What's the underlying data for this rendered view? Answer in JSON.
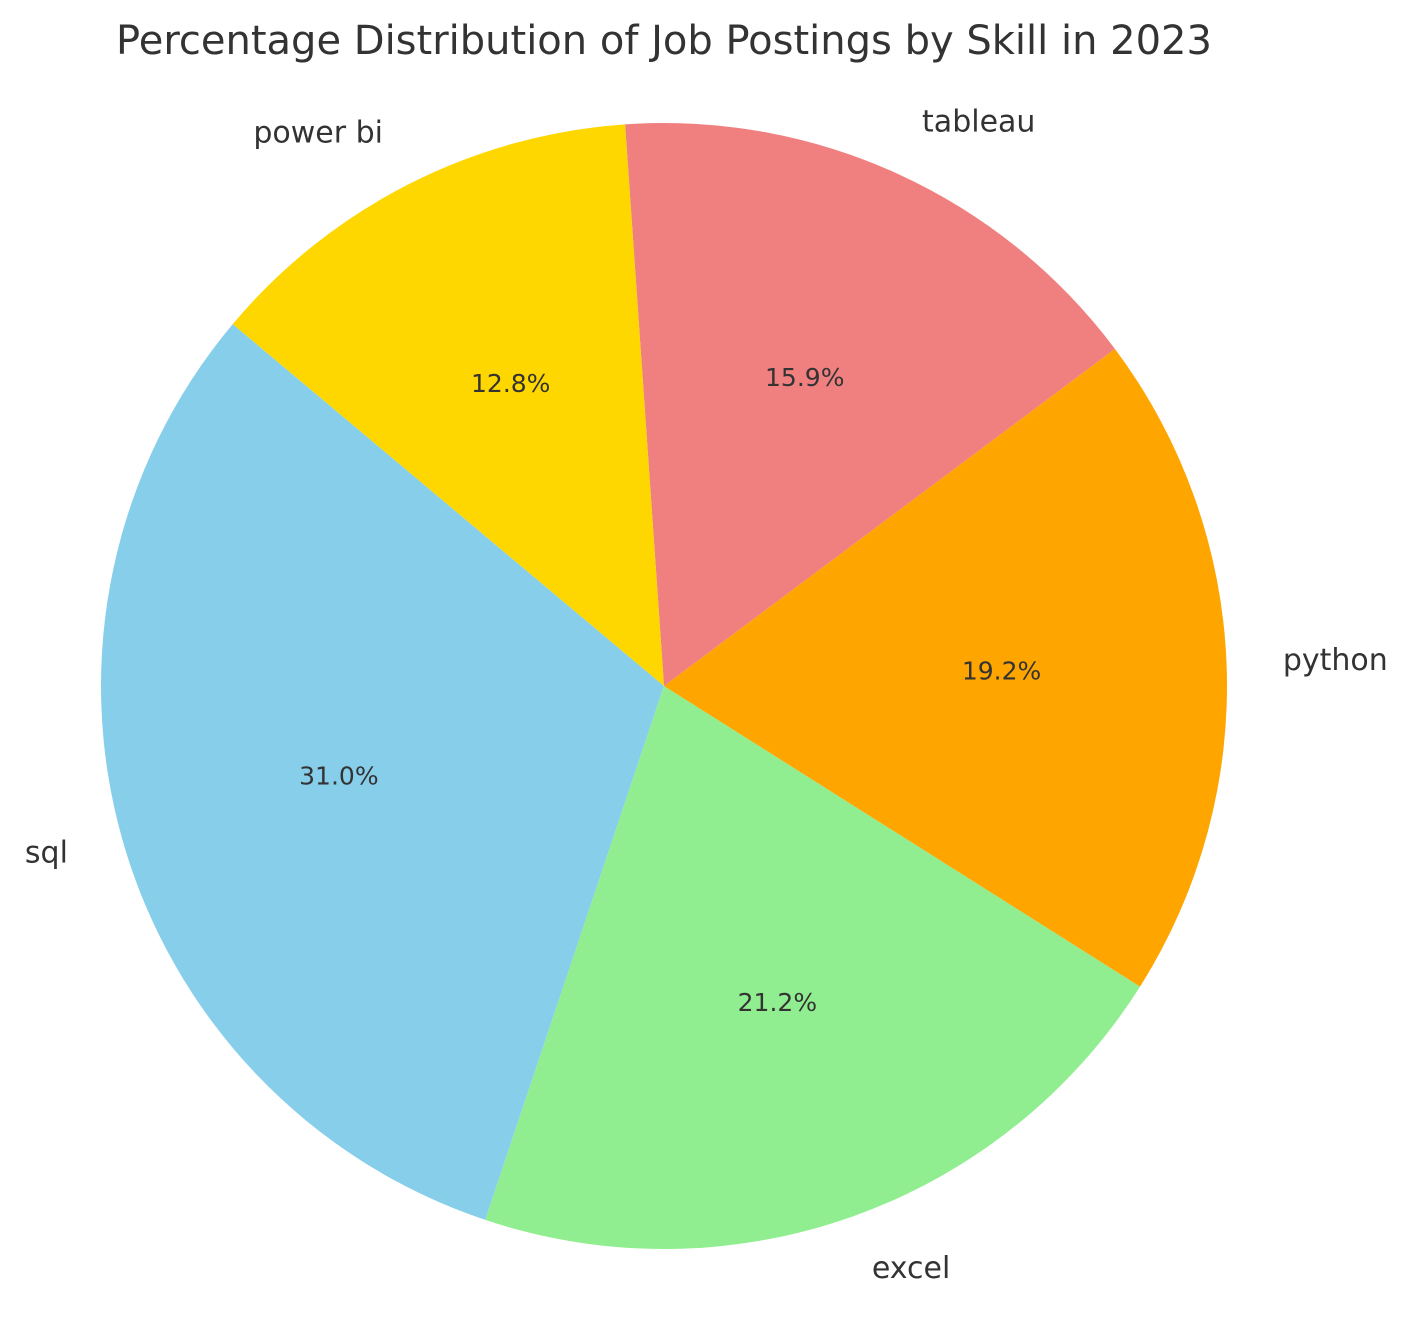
{
  "chart_data": {
    "type": "pie",
    "title": "Percentage Distribution of Job Postings by Skill in 2023",
    "start_angle_deg": 140,
    "direction": "counterclockwise",
    "slices": [
      {
        "label": "sql",
        "value": 31.0,
        "pct_label": "31.0%",
        "color": "#87CEEB"
      },
      {
        "label": "excel",
        "value": 21.2,
        "pct_label": "21.2%",
        "color": "#90EE90"
      },
      {
        "label": "python",
        "value": 19.2,
        "pct_label": "19.2%",
        "color": "#FFA500"
      },
      {
        "label": "tableau",
        "value": 15.9,
        "pct_label": "15.9%",
        "color": "#F08080"
      },
      {
        "label": "power bi",
        "value": 12.8,
        "pct_label": "12.8%",
        "color": "#FFD700"
      }
    ]
  }
}
